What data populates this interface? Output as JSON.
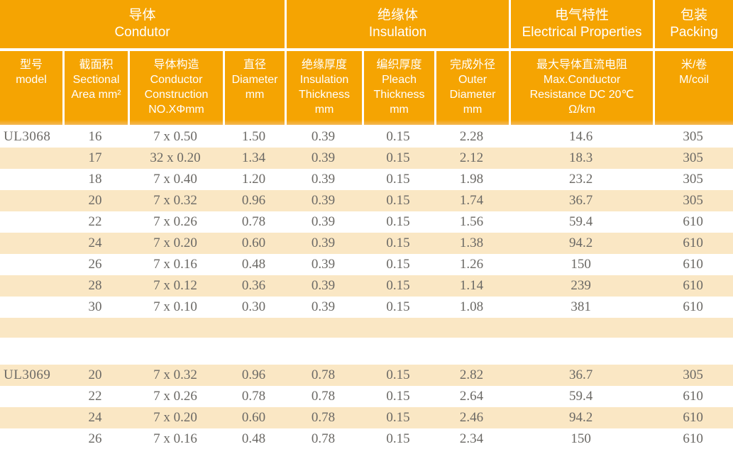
{
  "colors": {
    "header_bg": "#f5a402",
    "header_bottom_edge": "#f3b95a",
    "row_alt_bg": "#fae7c4",
    "row_bg": "#ffffff",
    "body_text": "#6b6965",
    "header_text": "#ffffff"
  },
  "table": {
    "header_groups": [
      {
        "key": "conductor",
        "label_zh": "导体",
        "label_en": "Condutor",
        "span": 4
      },
      {
        "key": "insulation",
        "label_zh": "绝缘体",
        "label_en": "Insulation",
        "span": 3
      },
      {
        "key": "electrical-properties",
        "label_zh": "电气特性",
        "label_en": "Electrical Properties",
        "span": 1
      },
      {
        "key": "packing",
        "label_zh": "包装",
        "label_en": "Packing",
        "span": 1
      }
    ],
    "columns": [
      {
        "key": "model",
        "lines": [
          "型号",
          "model"
        ]
      },
      {
        "key": "sectional-area",
        "lines": [
          "截面积",
          "Sectional",
          "Area mm²"
        ]
      },
      {
        "key": "conductor-construction",
        "lines": [
          "导体构造",
          "Conductor",
          "Construction",
          "NO.XΦmm"
        ]
      },
      {
        "key": "diameter",
        "lines": [
          "直径",
          "Diameter",
          "mm"
        ]
      },
      {
        "key": "insulation-thickness",
        "lines": [
          "绝缘厚度",
          "Insulation",
          "Thickness",
          "mm"
        ]
      },
      {
        "key": "pleach-thickness",
        "lines": [
          "编织厚度",
          "Pleach",
          "Thickness",
          "mm"
        ]
      },
      {
        "key": "outer-diameter",
        "lines": [
          "完成外径",
          "Outer",
          "Diameter",
          "mm"
        ]
      },
      {
        "key": "max-conductor-resistance",
        "lines": [
          "最大导体直流电阻",
          "Max.Conductor",
          "Resistance DC 20℃",
          "Ω/km"
        ]
      },
      {
        "key": "m-per-coil",
        "lines": [
          "米/卷",
          "M/coil"
        ]
      }
    ],
    "rows": [
      {
        "model": "UL3068",
        "values": [
          "16",
          "7 x 0.50",
          "1.50",
          "0.39",
          "0.15",
          "2.28",
          "14.6",
          "305"
        ],
        "shade": "white"
      },
      {
        "model": "",
        "values": [
          "17",
          "32 x 0.20",
          "1.34",
          "0.39",
          "0.15",
          "2.12",
          "18.3",
          "305"
        ],
        "shade": "cream"
      },
      {
        "model": "",
        "values": [
          "18",
          "7 x 0.40",
          "1.20",
          "0.39",
          "0.15",
          "1.98",
          "23.2",
          "305"
        ],
        "shade": "white"
      },
      {
        "model": "",
        "values": [
          "20",
          "7 x 0.32",
          "0.96",
          "0.39",
          "0.15",
          "1.74",
          "36.7",
          "305"
        ],
        "shade": "cream"
      },
      {
        "model": "",
        "values": [
          "22",
          "7 x 0.26",
          "0.78",
          "0.39",
          "0.15",
          "1.56",
          "59.4",
          "610"
        ],
        "shade": "white"
      },
      {
        "model": "",
        "values": [
          "24",
          "7 x 0.20",
          "0.60",
          "0.39",
          "0.15",
          "1.38",
          "94.2",
          "610"
        ],
        "shade": "cream"
      },
      {
        "model": "",
        "values": [
          "26",
          "7 x 0.16",
          "0.48",
          "0.39",
          "0.15",
          "1.26",
          "150",
          "610"
        ],
        "shade": "white"
      },
      {
        "model": "",
        "values": [
          "28",
          "7 x 0.12",
          "0.36",
          "0.39",
          "0.15",
          "1.14",
          "239",
          "610"
        ],
        "shade": "cream"
      },
      {
        "model": "",
        "values": [
          "30",
          "7 x 0.10",
          "0.30",
          "0.39",
          "0.15",
          "1.08",
          "381",
          "610"
        ],
        "shade": "white"
      },
      {
        "spacer": true,
        "shade": "cream",
        "tall": false
      },
      {
        "spacer": true,
        "shade": "white",
        "tall": true
      },
      {
        "model": "UL3069",
        "values": [
          "20",
          "7 x 0.32",
          "0.96",
          "0.78",
          "0.15",
          "2.82",
          "36.7",
          "305"
        ],
        "shade": "cream"
      },
      {
        "model": "",
        "values": [
          "22",
          "7 x 0.26",
          "0.78",
          "0.78",
          "0.15",
          "2.64",
          "59.4",
          "610"
        ],
        "shade": "white"
      },
      {
        "model": "",
        "values": [
          "24",
          "7 x 0.20",
          "0.60",
          "0.78",
          "0.15",
          "2.46",
          "94.2",
          "610"
        ],
        "shade": "cream"
      },
      {
        "model": "",
        "values": [
          "26",
          "7 x 0.16",
          "0.48",
          "0.78",
          "0.15",
          "2.34",
          "150",
          "610"
        ],
        "shade": "white"
      }
    ]
  }
}
